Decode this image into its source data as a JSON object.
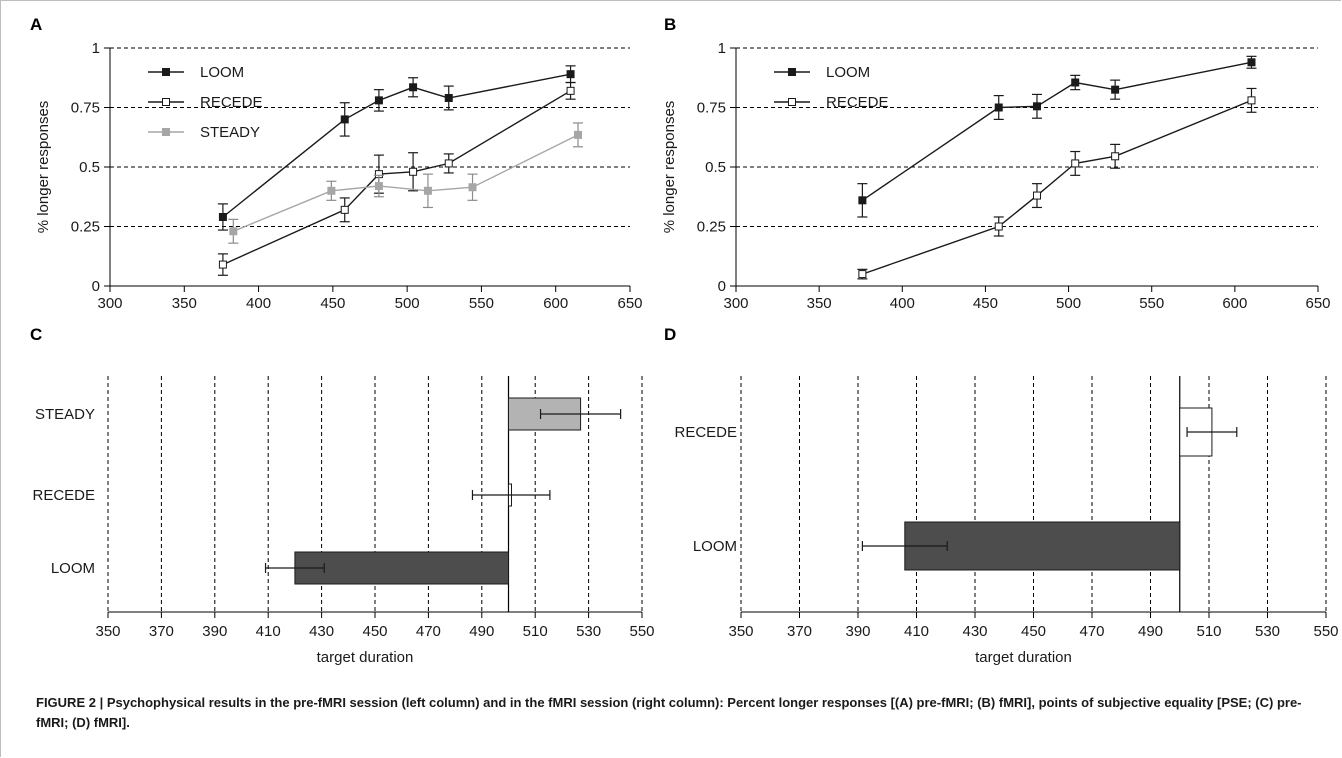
{
  "figure": {
    "caption": "FIGURE 2 | Psychophysical results in the pre-fMRI session (left column) and in the fMRI session (right column): Percent longer responses [(A) pre-fMRI; (B) fMRI], points of subjective equality [PSE; (C) pre-fMRI; (D) fMRI].",
    "colors": {
      "loom": "#1a1a1a",
      "recede": "#ffffff",
      "steady": "#a6a6a6",
      "loom_bar": "#4d4d4d",
      "steady_bar": "#b3b3b3",
      "axis": "#000000"
    }
  },
  "chart_data": [
    {
      "panel": "A",
      "type": "line",
      "title": "",
      "xlabel": "",
      "ylabel": "% longer responses",
      "xlim": [
        300,
        650
      ],
      "ylim": [
        0,
        1
      ],
      "xticks": [
        300,
        350,
        400,
        450,
        500,
        550,
        600,
        650
      ],
      "yticks": [
        0,
        0.25,
        0.5,
        0.75,
        1
      ],
      "ytick_labels": [
        "0",
        "0.25",
        "0.5",
        "0.75",
        "1"
      ],
      "grid": "horizontal dashed",
      "legend": "top-left",
      "series": [
        {
          "name": "LOOM",
          "marker": "filled-square",
          "color": "#1a1a1a",
          "x": [
            376,
            458,
            481,
            504,
            528,
            610
          ],
          "y": [
            0.29,
            0.7,
            0.78,
            0.835,
            0.79,
            0.89
          ],
          "err": [
            0.055,
            0.07,
            0.045,
            0.04,
            0.05,
            0.035
          ]
        },
        {
          "name": "RECEDE",
          "marker": "open-square",
          "color": "#1a1a1a",
          "x": [
            376,
            458,
            481,
            504,
            528,
            610
          ],
          "y": [
            0.09,
            0.32,
            0.47,
            0.48,
            0.515,
            0.82
          ],
          "err": [
            0.045,
            0.05,
            0.08,
            0.08,
            0.04,
            0.035
          ]
        },
        {
          "name": "STEADY",
          "marker": "gray-square",
          "color": "#a6a6a6",
          "x": [
            383,
            449,
            481,
            514,
            544,
            615
          ],
          "y": [
            0.23,
            0.4,
            0.42,
            0.4,
            0.415,
            0.635
          ],
          "err": [
            0.05,
            0.04,
            0.045,
            0.07,
            0.055,
            0.05
          ]
        }
      ]
    },
    {
      "panel": "B",
      "type": "line",
      "title": "",
      "xlabel": "",
      "ylabel": "% longer responses",
      "xlim": [
        300,
        650
      ],
      "ylim": [
        0,
        1
      ],
      "xticks": [
        300,
        350,
        400,
        450,
        500,
        550,
        600,
        650
      ],
      "yticks": [
        0,
        0.25,
        0.5,
        0.75,
        1
      ],
      "ytick_labels": [
        "0",
        "0.25",
        "0.5",
        "0.75",
        "1"
      ],
      "grid": "horizontal dashed",
      "legend": "top-left",
      "series": [
        {
          "name": "LOOM",
          "marker": "filled-square",
          "color": "#1a1a1a",
          "x": [
            376,
            458,
            481,
            504,
            528,
            610
          ],
          "y": [
            0.36,
            0.75,
            0.755,
            0.855,
            0.825,
            0.94
          ],
          "err": [
            0.07,
            0.05,
            0.05,
            0.03,
            0.04,
            0.025
          ]
        },
        {
          "name": "RECEDE",
          "marker": "open-square",
          "color": "#1a1a1a",
          "x": [
            376,
            458,
            481,
            504,
            528,
            610
          ],
          "y": [
            0.05,
            0.25,
            0.38,
            0.515,
            0.545,
            0.78
          ],
          "err": [
            0.02,
            0.04,
            0.05,
            0.05,
            0.05,
            0.05
          ]
        }
      ]
    },
    {
      "panel": "C",
      "type": "bar",
      "orientation": "horizontal",
      "title": "",
      "xlabel": "target duration",
      "ylabel": "",
      "baseline": 500,
      "xlim": [
        350,
        550
      ],
      "xticks": [
        350,
        370,
        390,
        410,
        430,
        450,
        470,
        490,
        510,
        530,
        550
      ],
      "grid": "vertical dashed",
      "categories": [
        "STEADY",
        "RECEDE",
        "LOOM"
      ],
      "values": [
        527,
        501,
        420
      ],
      "err": [
        15,
        14.5,
        11
      ],
      "bar_colors": [
        "#b3b3b3",
        "#ffffff",
        "#4d4d4d"
      ]
    },
    {
      "panel": "D",
      "type": "bar",
      "orientation": "horizontal",
      "title": "",
      "xlabel": "target duration",
      "ylabel": "",
      "baseline": 500,
      "xlim": [
        350,
        550
      ],
      "xticks": [
        350,
        370,
        390,
        410,
        430,
        450,
        470,
        490,
        510,
        530,
        550
      ],
      "grid": "vertical dashed",
      "categories": [
        "RECEDE",
        "LOOM"
      ],
      "values": [
        511,
        406
      ],
      "err": [
        8.5,
        14.5
      ],
      "bar_colors": [
        "#ffffff",
        "#4d4d4d"
      ]
    }
  ]
}
